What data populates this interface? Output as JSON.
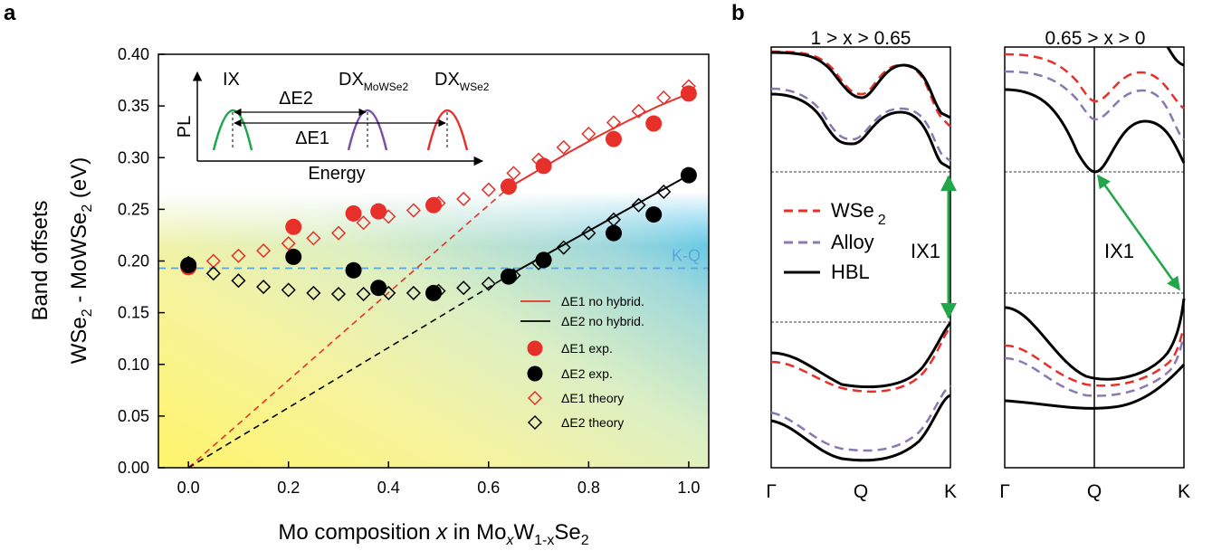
{
  "panel_a": {
    "label": "a",
    "colors": {
      "red": "#e8302a",
      "black": "#000000",
      "kq": "#5aa7dc",
      "inset_green": "#1aa84c",
      "inset_purple": "#7b4fa8",
      "inset_red": "#e8302a",
      "gradient": [
        "#fff59a",
        "#f7f28a",
        "#e6f0b0",
        "#a8d8d8",
        "#4cc0e6"
      ]
    },
    "kq_label": "K-Q",
    "inset": {
      "pl_label": "PL",
      "energy_label": "Energy",
      "ix_label": "IX",
      "dx_mowse2_main": "DX",
      "dx_mowse2_sub": "MoWSe2",
      "dx_wse2_main": "DX",
      "dx_wse2_sub": "WSe2",
      "de2_label": "ΔE2",
      "de1_label": "ΔE1"
    },
    "y_title_1": "Band offsets",
    "y_title_2a": "WSe",
    "y_title_2b": "2",
    "y_title_2c": " - MoWSe",
    "y_title_2d": "2",
    "y_title_2e": "  (eV)",
    "x_title": {
      "p1": "Mo composition ",
      "p2": "x",
      "p3": " in Mo",
      "p4": "x",
      "p5": "W",
      "p6": "1-x",
      "p7": "Se",
      "p8": "2"
    },
    "legend": [
      "ΔE1 no hybrid.",
      "ΔE2 no hybrid.",
      "ΔE1 exp.",
      "ΔE2 exp.",
      "ΔE1 theory",
      "ΔE2 theory"
    ]
  },
  "chart_data": {
    "type": "scatter",
    "x_ticks": [
      "0.0",
      "0.2",
      "0.4",
      "0.6",
      "0.8",
      "1.0"
    ],
    "y_ticks": [
      "0.00",
      "0.05",
      "0.10",
      "0.15",
      "0.20",
      "0.25",
      "0.30",
      "0.35",
      "0.40"
    ],
    "xlim": [
      -0.06,
      1.04
    ],
    "ylim": [
      0,
      0.4
    ],
    "kq_level": 0.193,
    "series": [
      {
        "name": "ΔE1 exp.",
        "marker": "filled-circle",
        "color": "#e8302a",
        "x": [
          0.0,
          0.21,
          0.33,
          0.38,
          0.49,
          0.64,
          0.71,
          0.85,
          0.93,
          1.0
        ],
        "y": [
          0.194,
          0.233,
          0.246,
          0.248,
          0.254,
          0.272,
          0.292,
          0.318,
          0.333,
          0.362
        ]
      },
      {
        "name": "ΔE2 exp.",
        "marker": "filled-circle",
        "color": "#000000",
        "x": [
          0.0,
          0.21,
          0.33,
          0.38,
          0.49,
          0.64,
          0.71,
          0.85,
          0.93,
          1.0
        ],
        "y": [
          0.196,
          0.204,
          0.191,
          0.174,
          0.169,
          0.185,
          0.201,
          0.227,
          0.245,
          0.283
        ]
      },
      {
        "name": "ΔE1 theory",
        "marker": "open-diamond",
        "color": "#e8302a",
        "x": [
          0.0,
          0.05,
          0.1,
          0.15,
          0.2,
          0.25,
          0.3,
          0.35,
          0.4,
          0.45,
          0.5,
          0.55,
          0.6,
          0.65,
          0.7,
          0.75,
          0.8,
          0.85,
          0.9,
          0.95,
          1.0
        ],
        "y": [
          0.194,
          0.2,
          0.205,
          0.21,
          0.217,
          0.222,
          0.227,
          0.237,
          0.243,
          0.249,
          0.256,
          0.26,
          0.269,
          0.285,
          0.298,
          0.31,
          0.323,
          0.334,
          0.345,
          0.358,
          0.369
        ]
      },
      {
        "name": "ΔE2 theory",
        "marker": "open-diamond",
        "color": "#000000",
        "x": [
          0.0,
          0.05,
          0.1,
          0.15,
          0.2,
          0.25,
          0.3,
          0.35,
          0.4,
          0.45,
          0.5,
          0.55,
          0.6,
          0.65,
          0.7,
          0.75,
          0.8,
          0.85,
          0.9,
          0.95,
          1.0
        ],
        "y": [
          0.198,
          0.188,
          0.181,
          0.175,
          0.172,
          0.169,
          0.168,
          0.168,
          0.169,
          0.169,
          0.171,
          0.174,
          0.178,
          0.186,
          0.198,
          0.213,
          0.227,
          0.24,
          0.254,
          0.267,
          0.283
        ]
      },
      {
        "name": "ΔE1 no hybrid.",
        "marker": "line",
        "color": "#e8302a",
        "solid_x": [
          0.64,
          0.7,
          0.76,
          0.82,
          0.88,
          0.94,
          1.0
        ],
        "solid_y": [
          0.271,
          0.288,
          0.305,
          0.321,
          0.336,
          0.35,
          0.362
        ],
        "dashed_x": [
          0.0,
          0.64
        ],
        "dashed_y": [
          0.0,
          0.271
        ]
      },
      {
        "name": "ΔE2 no hybrid.",
        "marker": "line",
        "color": "#000000",
        "solid_x": [
          0.64,
          1.0
        ],
        "solid_y": [
          0.186,
          0.283
        ],
        "dashed_x": [
          0.0,
          0.64
        ],
        "dashed_y": [
          0.0,
          0.186
        ]
      }
    ]
  },
  "panel_b": {
    "label": "b",
    "left_title": "1 > x > 0.65",
    "right_title": "0.65 > x > 0",
    "k_labels": [
      "Γ",
      "Q",
      "K"
    ],
    "ix_label": "IX1",
    "legend": [
      {
        "name": "WSe",
        "sub": "2",
        "color": "#e8302a",
        "style": "dashed"
      },
      {
        "name": "Alloy",
        "sub": "",
        "color": "#8a78b0",
        "style": "dashed"
      },
      {
        "name": "HBL",
        "sub": "",
        "color": "#000000",
        "style": "solid"
      }
    ],
    "arrow_color": "#22a64a"
  }
}
